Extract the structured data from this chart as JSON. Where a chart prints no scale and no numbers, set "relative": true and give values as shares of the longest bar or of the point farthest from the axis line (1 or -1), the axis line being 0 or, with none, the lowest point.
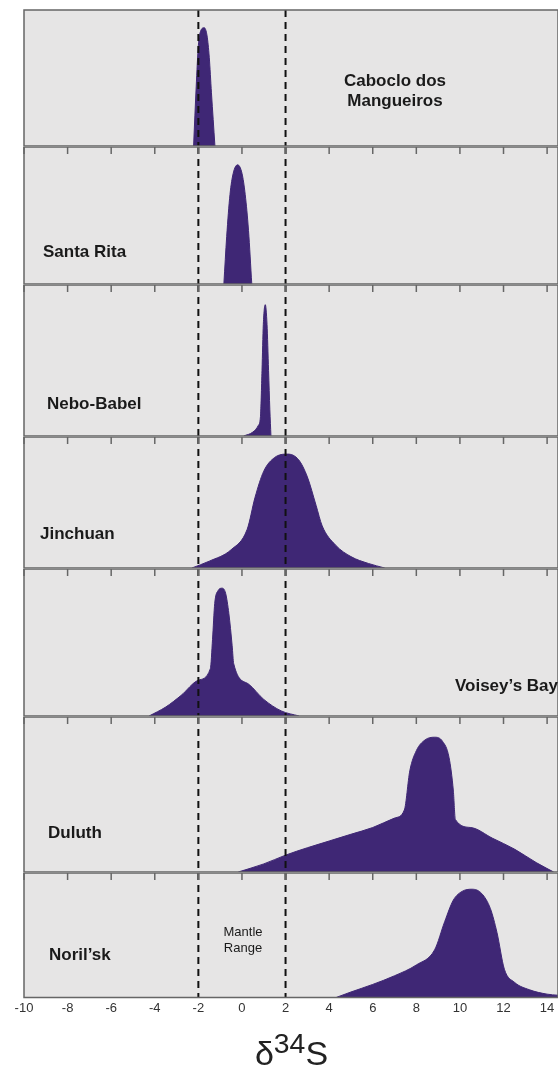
{
  "chart_data": [
    {
      "type": "area",
      "relative": true,
      "color": "#3f2775",
      "xlim": [
        -10,
        14.5
      ],
      "xticks": [
        -10,
        -8,
        -6,
        -4,
        -2,
        0,
        2,
        4,
        6,
        8,
        10,
        12,
        14
      ],
      "tick_labels": false,
      "ref_lines": [
        {
          "axis": "x",
          "value": -2,
          "line_style": "dashed"
        },
        {
          "axis": "x",
          "value": 2,
          "line_style": "dashed"
        }
      ],
      "x": [
        -2.22,
        -2.1,
        -2.0,
        -1.9,
        -1.73,
        -1.6,
        -1.5,
        -1.4,
        -1.24
      ],
      "values": [
        0,
        0.5,
        0.85,
        0.97,
        1,
        0.93,
        0.75,
        0.45,
        0
      ],
      "annotations": [
        "Caboclo dos Mangueiros"
      ]
    },
    {
      "type": "area",
      "relative": true,
      "color": "#3f2775",
      "xlim": [
        -10,
        14.5
      ],
      "xticks": [
        -10,
        -8,
        -6,
        -4,
        -2,
        0,
        2,
        4,
        6,
        8,
        10,
        12,
        14
      ],
      "tick_labels": false,
      "ref_lines": [
        {
          "axis": "x",
          "value": -2,
          "line_style": "dashed"
        },
        {
          "axis": "x",
          "value": 2,
          "line_style": "dashed"
        }
      ],
      "x": [
        -0.83,
        -0.7,
        -0.55,
        -0.4,
        -0.2,
        0,
        0.15,
        0.3,
        0.45
      ],
      "values": [
        0,
        0.4,
        0.75,
        0.93,
        1,
        0.93,
        0.75,
        0.45,
        0
      ],
      "annotations": [
        "Santa Rita"
      ]
    },
    {
      "type": "area",
      "relative": true,
      "color": "#3f2775",
      "xlim": [
        -10,
        14.5
      ],
      "xticks": [
        -10,
        -8,
        -6,
        -4,
        -2,
        0,
        2,
        4,
        6,
        8,
        10,
        12,
        14
      ],
      "tick_labels": false,
      "ref_lines": [
        {
          "axis": "x",
          "value": -2,
          "line_style": "dashed"
        },
        {
          "axis": "x",
          "value": 2,
          "line_style": "dashed"
        }
      ],
      "x": [
        0.08,
        0.5,
        0.75,
        0.85,
        0.92,
        0.98,
        1.07,
        1.15,
        1.22,
        1.28,
        1.33
      ],
      "values": [
        0,
        0.03,
        0.08,
        0.15,
        0.5,
        0.85,
        1,
        0.85,
        0.5,
        0.2,
        0
      ],
      "annotations": [
        "Nebo-Babel"
      ]
    },
    {
      "type": "area",
      "relative": true,
      "color": "#3f2775",
      "xlim": [
        -10,
        14.5
      ],
      "xticks": [
        -10,
        -8,
        -6,
        -4,
        -2,
        0,
        2,
        4,
        6,
        8,
        10,
        12,
        14
      ],
      "tick_labels": false,
      "ref_lines": [
        {
          "axis": "x",
          "value": -2,
          "line_style": "dashed"
        },
        {
          "axis": "x",
          "value": 2,
          "line_style": "dashed"
        }
      ],
      "x": [
        -2.3,
        -1.5,
        -0.5,
        0.24,
        0.6,
        1.0,
        1.5,
        2.09,
        2.6,
        3.0,
        3.4,
        3.68,
        4.3,
        5.0,
        5.8,
        6.55
      ],
      "values": [
        0,
        0.06,
        0.16,
        0.34,
        0.62,
        0.85,
        0.97,
        1,
        0.95,
        0.8,
        0.55,
        0.37,
        0.2,
        0.1,
        0.04,
        0
      ],
      "annotations": [
        "Jinchuan"
      ]
    },
    {
      "type": "area",
      "relative": true,
      "color": "#3f2775",
      "xlim": [
        -10,
        14.5
      ],
      "xticks": [
        -10,
        -8,
        -6,
        -4,
        -2,
        0,
        2,
        4,
        6,
        8,
        10,
        12,
        14
      ],
      "tick_labels": false,
      "ref_lines": [
        {
          "axis": "x",
          "value": -2,
          "line_style": "dashed"
        },
        {
          "axis": "x",
          "value": 2,
          "line_style": "dashed"
        }
      ],
      "x": [
        -4.26,
        -3.5,
        -2.8,
        -2.0,
        -1.45,
        -1.35,
        -1.25,
        -1.1,
        -0.91,
        -0.75,
        -0.6,
        -0.45,
        -0.38,
        0.3,
        1.0,
        1.8,
        2.62
      ],
      "values": [
        0,
        0.07,
        0.16,
        0.28,
        0.37,
        0.6,
        0.88,
        0.98,
        1,
        0.96,
        0.8,
        0.55,
        0.41,
        0.25,
        0.13,
        0.04,
        0
      ],
      "annotations": [
        "Voisey’s Bay"
      ]
    },
    {
      "type": "area",
      "relative": true,
      "color": "#3f2775",
      "xlim": [
        -10,
        14.5
      ],
      "xticks": [
        -10,
        -8,
        -6,
        -4,
        -2,
        0,
        2,
        4,
        6,
        8,
        10,
        12,
        14
      ],
      "tick_labels": false,
      "ref_lines": [
        {
          "axis": "x",
          "value": -2,
          "line_style": "dashed"
        },
        {
          "axis": "x",
          "value": 2,
          "line_style": "dashed"
        }
      ],
      "x": [
        -0.17,
        1,
        2,
        3,
        4,
        5,
        6,
        7,
        7.45,
        7.7,
        8.0,
        8.4,
        8.84,
        9.2,
        9.5,
        9.7,
        9.79,
        10.5,
        11.5,
        12.5,
        13.5,
        14.3
      ],
      "values": [
        0,
        0.06,
        0.125,
        0.18,
        0.23,
        0.28,
        0.33,
        0.4,
        0.46,
        0.75,
        0.9,
        0.98,
        1,
        0.97,
        0.85,
        0.6,
        0.39,
        0.33,
        0.25,
        0.17,
        0.07,
        0
      ],
      "annotations": [
        "Duluth"
      ]
    },
    {
      "type": "area",
      "relative": true,
      "color": "#3f2775",
      "xlim": [
        -10,
        14.5
      ],
      "xticks": [
        -10,
        -8,
        -6,
        -4,
        -2,
        0,
        2,
        4,
        6,
        8,
        10,
        12,
        14
      ],
      "tick_labels": "x",
      "xlabel": "δ$^{34}$S",
      "ref_lines": [
        {
          "axis": "x",
          "value": -2,
          "line_style": "dashed"
        },
        {
          "axis": "x",
          "value": 2,
          "line_style": "dashed"
        }
      ],
      "x": [
        4.33,
        5,
        6,
        7,
        8,
        8.84,
        9.3,
        9.7,
        10.1,
        10.56,
        11.0,
        11.4,
        11.7,
        12.04,
        12.5,
        13.2,
        14.0,
        14.5
      ],
      "values": [
        0,
        0.05,
        0.12,
        0.2,
        0.3,
        0.44,
        0.7,
        0.9,
        0.98,
        1,
        0.96,
        0.82,
        0.6,
        0.26,
        0.14,
        0.07,
        0.03,
        0.02
      ],
      "annotations": [
        "Noril’sk",
        "Mantle Range"
      ]
    }
  ]
}
